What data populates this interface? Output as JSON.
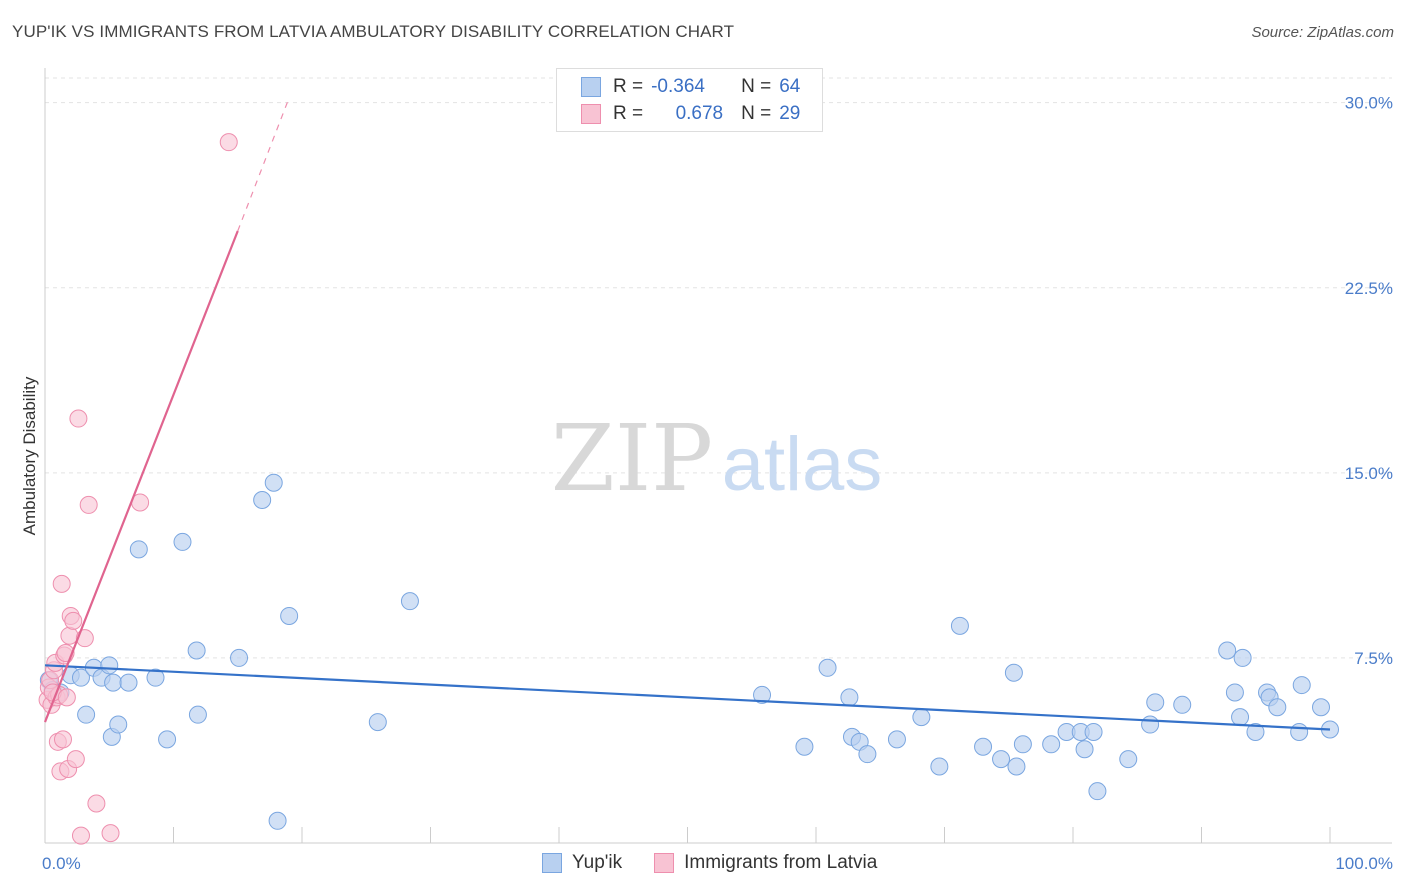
{
  "title": "YUP'IK VS IMMIGRANTS FROM LATVIA AMBULATORY DISABILITY CORRELATION CHART",
  "source": "Source: ZipAtlas.com",
  "watermark": {
    "zip": "ZIP",
    "atlas": "atlas"
  },
  "colors": {
    "blue_fill": "#b8d0f0",
    "blue_stroke": "#7aa6e0",
    "blue_line": "#3572c9",
    "pink_fill": "#f8c3d3",
    "pink_stroke": "#ee8fae",
    "pink_line": "#e0648f",
    "grid": "#e3e3e3",
    "tick_label": "#4a7cc9"
  },
  "legend": {
    "rows": [
      {
        "r_label": "R =",
        "r_value": "-0.364",
        "n_label": "N =",
        "n_value": "64"
      },
      {
        "r_label": "R =",
        "r_value": "0.678",
        "n_label": "N =",
        "n_value": "29"
      }
    ]
  },
  "chart_data": {
    "type": "scatter",
    "title": "YUP'IK VS IMMIGRANTS FROM LATVIA AMBULATORY DISABILITY CORRELATION CHART",
    "xlabel": "",
    "ylabel": "Ambulatory Disability",
    "xlim": [
      0,
      100
    ],
    "ylim": [
      0,
      31
    ],
    "x_ticks": [
      {
        "value": 0,
        "label": "0.0%"
      },
      {
        "value": 100,
        "label": "100.0%"
      }
    ],
    "y_ticks": [
      {
        "value": 7.5,
        "label": "7.5%"
      },
      {
        "value": 15,
        "label": "15.0%"
      },
      {
        "value": 22.5,
        "label": "22.5%"
      },
      {
        "value": 30,
        "label": "30.0%"
      }
    ],
    "grid": true,
    "legend_position": "bottom",
    "series": [
      {
        "name": "Yup'ik",
        "r": -0.364,
        "n": 64,
        "trend": {
          "x": [
            0,
            100
          ],
          "y": [
            7.2,
            4.6
          ]
        },
        "points": [
          [
            0.3,
            6.6
          ],
          [
            0.6,
            6.2
          ],
          [
            1.2,
            6.1
          ],
          [
            2.0,
            6.8
          ],
          [
            2.8,
            6.7
          ],
          [
            3.2,
            5.2
          ],
          [
            3.8,
            7.1
          ],
          [
            4.4,
            6.7
          ],
          [
            5.0,
            7.2
          ],
          [
            5.2,
            4.3
          ],
          [
            5.3,
            6.5
          ],
          [
            5.7,
            4.8
          ],
          [
            6.5,
            6.5
          ],
          [
            7.3,
            11.9
          ],
          [
            8.6,
            6.7
          ],
          [
            9.5,
            4.2
          ],
          [
            10.7,
            12.2
          ],
          [
            11.8,
            7.8
          ],
          [
            11.9,
            5.2
          ],
          [
            15.1,
            7.5
          ],
          [
            16.9,
            13.9
          ],
          [
            17.8,
            14.6
          ],
          [
            18.1,
            0.9
          ],
          [
            19.0,
            9.2
          ],
          [
            25.9,
            4.9
          ],
          [
            28.4,
            9.8
          ],
          [
            55.8,
            6.0
          ],
          [
            59.1,
            3.9
          ],
          [
            60.9,
            7.1
          ],
          [
            62.6,
            5.9
          ],
          [
            62.8,
            4.3
          ],
          [
            63.4,
            4.1
          ],
          [
            64.0,
            3.6
          ],
          [
            66.3,
            4.2
          ],
          [
            68.2,
            5.1
          ],
          [
            69.6,
            3.1
          ],
          [
            71.2,
            8.8
          ],
          [
            73.0,
            3.9
          ],
          [
            74.4,
            3.4
          ],
          [
            75.4,
            6.9
          ],
          [
            75.6,
            3.1
          ],
          [
            76.1,
            4.0
          ],
          [
            78.3,
            4.0
          ],
          [
            79.5,
            4.5
          ],
          [
            80.6,
            4.5
          ],
          [
            80.9,
            3.8
          ],
          [
            81.6,
            4.5
          ],
          [
            81.9,
            2.1
          ],
          [
            84.3,
            3.4
          ],
          [
            86.0,
            4.8
          ],
          [
            86.4,
            5.7
          ],
          [
            88.5,
            5.6
          ],
          [
            92.0,
            7.8
          ],
          [
            92.6,
            6.1
          ],
          [
            93.0,
            5.1
          ],
          [
            93.2,
            7.5
          ],
          [
            94.2,
            4.5
          ],
          [
            95.1,
            6.1
          ],
          [
            95.3,
            5.9
          ],
          [
            95.9,
            5.5
          ],
          [
            97.6,
            4.5
          ],
          [
            97.8,
            6.4
          ],
          [
            99.3,
            5.5
          ],
          [
            100,
            4.6
          ]
        ]
      },
      {
        "name": "Immigrants from Latvia",
        "r": 0.678,
        "n": 29,
        "trend": {
          "x": [
            0,
            15
          ],
          "y": [
            4.9,
            24.8
          ]
        },
        "trend_dashed": {
          "x": [
            15,
            19
          ],
          "y": [
            24.8,
            30.2
          ]
        },
        "points": [
          [
            0.2,
            5.8
          ],
          [
            0.3,
            6.3
          ],
          [
            0.4,
            6.6
          ],
          [
            0.5,
            5.6
          ],
          [
            0.7,
            7.0
          ],
          [
            0.8,
            7.3
          ],
          [
            0.9,
            5.9
          ],
          [
            1.0,
            4.1
          ],
          [
            1.1,
            6.0
          ],
          [
            1.2,
            2.9
          ],
          [
            1.3,
            10.5
          ],
          [
            1.4,
            4.2
          ],
          [
            1.5,
            7.6
          ],
          [
            1.6,
            7.7
          ],
          [
            1.8,
            3.0
          ],
          [
            1.9,
            8.4
          ],
          [
            2.0,
            9.2
          ],
          [
            2.2,
            9.0
          ],
          [
            2.4,
            3.4
          ],
          [
            2.6,
            17.2
          ],
          [
            2.8,
            0.3
          ],
          [
            3.1,
            8.3
          ],
          [
            3.4,
            13.7
          ],
          [
            4.0,
            1.6
          ],
          [
            5.1,
            0.4
          ],
          [
            7.4,
            13.8
          ],
          [
            14.3,
            28.4
          ],
          [
            0.6,
            6.1
          ],
          [
            1.7,
            5.9
          ]
        ]
      }
    ]
  },
  "bottom_legend": {
    "items": [
      {
        "label": "Yup'ik"
      },
      {
        "label": "Immigrants from Latvia"
      }
    ]
  }
}
